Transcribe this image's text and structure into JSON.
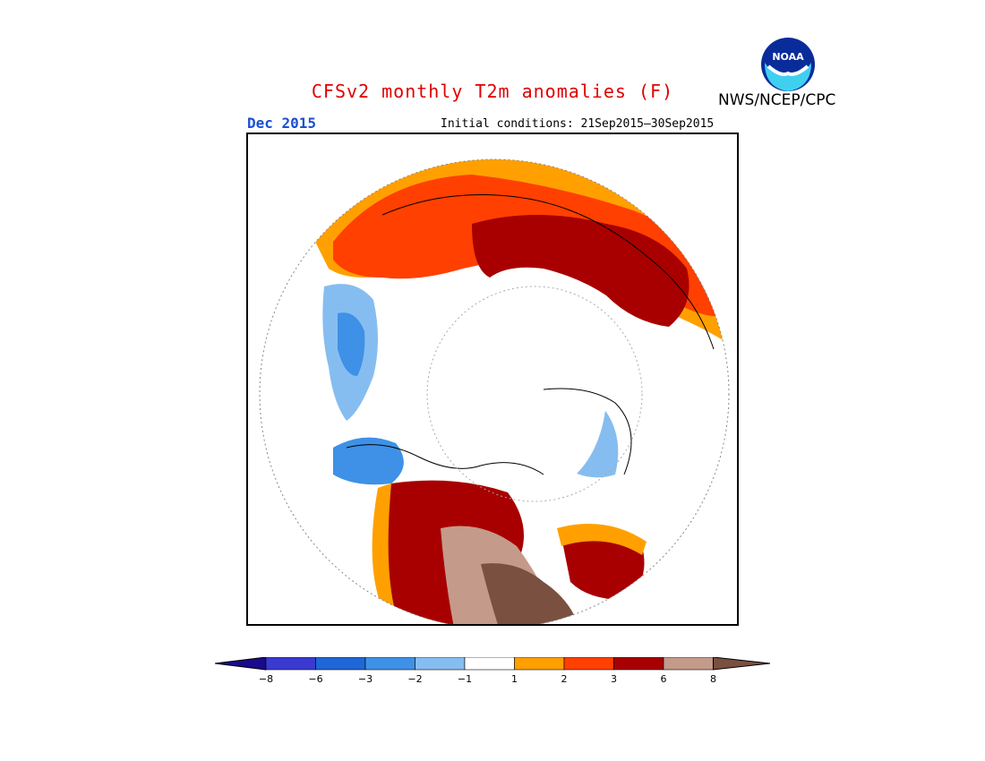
{
  "header": {
    "title": "CFSv2 monthly T2m anomalies (F)",
    "title_color": "#e00000",
    "month": "Dec 2015",
    "month_color": "#1a4fd6",
    "initial_conditions": "Initial conditions: 21Sep2015—30Sep2015",
    "agency": "NWS/NCEP/CPC",
    "logo_text": "NOAA"
  },
  "map": {
    "projection": "north-polar-stereographic",
    "variable": "T2m anomaly",
    "units": "F"
  },
  "colorbar": {
    "tick_labels": [
      "−8",
      "−6",
      "−3",
      "−2",
      "−1",
      "1",
      "2",
      "3",
      "6",
      "8"
    ],
    "colors": [
      "#1a0a8c",
      "#3a3ad0",
      "#1f66d6",
      "#3e91e6",
      "#86bdf0",
      "#ffffff",
      "#ffa000",
      "#ff4000",
      "#a80000",
      "#c49a8a",
      "#7a5040"
    ]
  }
}
